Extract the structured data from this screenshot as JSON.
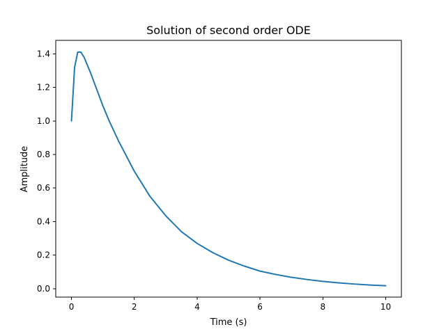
{
  "chart_data": {
    "type": "line",
    "title": "Solution of second order ODE",
    "xlabel": "Time (s)",
    "ylabel": "Amplitude",
    "xlim": [
      -0.5,
      10.5
    ],
    "ylim": [
      -0.05,
      1.48
    ],
    "xticks": [
      0,
      2,
      4,
      6,
      8,
      10
    ],
    "xtick_labels": [
      "0",
      "2",
      "4",
      "6",
      "8",
      "10"
    ],
    "yticks": [
      0.0,
      0.2,
      0.4,
      0.6,
      0.8,
      1.0,
      1.2,
      1.4
    ],
    "ytick_labels": [
      "0.0",
      "0.2",
      "0.4",
      "0.6",
      "0.8",
      "1.0",
      "1.2",
      "1.4"
    ],
    "grid": false,
    "series": [
      {
        "color": "#1f77b4",
        "x": [
          0,
          0.1,
          0.2,
          0.3,
          0.4,
          0.6,
          0.8,
          1.0,
          1.2,
          1.5,
          2.0,
          2.5,
          3.0,
          3.5,
          4.0,
          4.5,
          5.0,
          5.5,
          6.0,
          6.5,
          7.0,
          7.5,
          8.0,
          8.5,
          9.0,
          9.5,
          10.0
        ],
        "y": [
          1.0,
          1.32,
          1.41,
          1.41,
          1.38,
          1.29,
          1.19,
          1.09,
          1.0,
          0.88,
          0.7,
          0.55,
          0.435,
          0.34,
          0.27,
          0.215,
          0.17,
          0.135,
          0.105,
          0.085,
          0.068,
          0.055,
          0.044,
          0.035,
          0.028,
          0.022,
          0.018
        ]
      }
    ]
  }
}
